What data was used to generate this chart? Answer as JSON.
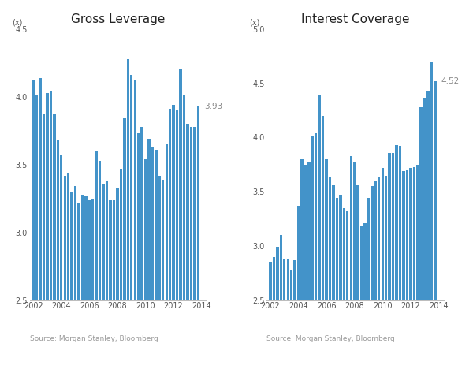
{
  "gross_leverage": {
    "title": "Gross Leverage",
    "ylabel_unit": "(x)",
    "ylim": [
      2.5,
      4.5
    ],
    "yticks": [
      2.5,
      3.0,
      3.5,
      4.0,
      4.5
    ],
    "last_label": "3.93",
    "source": "Source: Morgan Stanley, Bloomberg",
    "values": [
      4.13,
      4.01,
      4.14,
      3.88,
      4.03,
      4.04,
      3.87,
      3.68,
      3.57,
      3.42,
      3.44,
      3.3,
      3.34,
      3.22,
      3.28,
      3.27,
      3.24,
      3.25,
      3.6,
      3.53,
      3.36,
      3.38,
      3.24,
      3.24,
      3.33,
      3.47,
      3.84,
      4.28,
      4.16,
      4.13,
      3.73,
      3.78,
      3.54,
      3.69,
      3.63,
      3.61,
      3.42,
      3.39,
      3.65,
      3.91,
      3.94,
      3.9,
      4.21,
      4.01,
      3.8,
      3.78,
      3.78,
      3.93
    ]
  },
  "interest_coverage": {
    "title": "Interest Coverage",
    "ylabel_unit": "(x)",
    "ylim": [
      2.5,
      5.0
    ],
    "yticks": [
      2.5,
      3.0,
      3.5,
      4.0,
      4.5,
      5.0
    ],
    "last_label": "4.52",
    "source": "Source: Morgan Stanley, Bloomberg",
    "values": [
      2.85,
      2.9,
      2.99,
      3.1,
      2.88,
      2.88,
      2.78,
      2.87,
      3.37,
      3.8,
      3.75,
      3.78,
      4.01,
      4.05,
      4.39,
      4.2,
      3.8,
      3.64,
      3.57,
      3.44,
      3.47,
      3.35,
      3.33,
      3.83,
      3.78,
      3.57,
      3.19,
      3.21,
      3.44,
      3.55,
      3.6,
      3.63,
      3.72,
      3.65,
      3.86,
      3.86,
      3.93,
      3.92,
      3.69,
      3.7,
      3.72,
      3.73,
      3.75,
      4.28,
      4.37,
      4.43,
      4.7,
      4.52
    ]
  },
  "bar_color": "#4393c9",
  "background_color": "#ffffff",
  "title_fontsize": 11,
  "tick_fontsize": 7,
  "source_fontsize": 6.5,
  "annotation_fontsize": 7.5,
  "n_bars": 48,
  "start_year": 2002,
  "xtick_years": [
    2002,
    2004,
    2006,
    2008,
    2010,
    2012,
    2014
  ]
}
